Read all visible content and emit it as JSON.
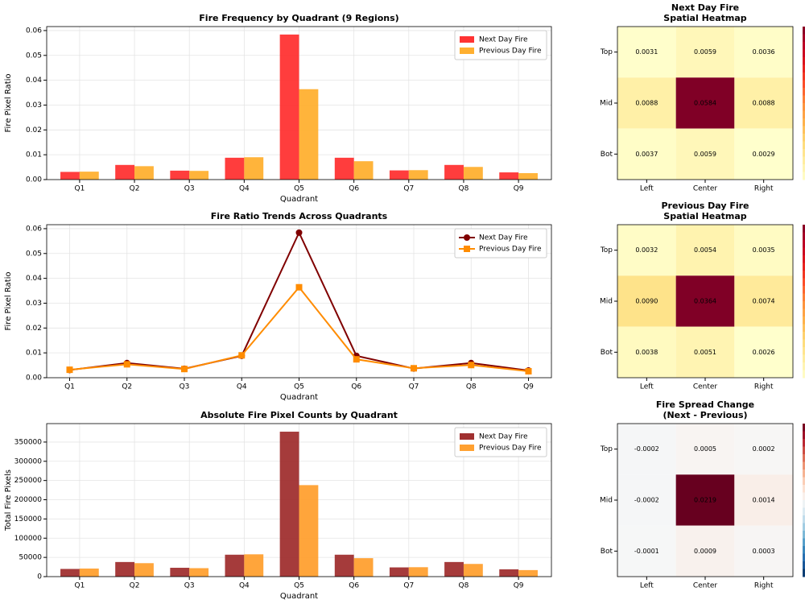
{
  "chart_data": [
    {
      "type": "bar",
      "title": "Fire Frequency by Quadrant (9 Regions)",
      "x_label": "Quadrant",
      "y_label": "Fire Pixel Ratio",
      "categories": [
        "Q1",
        "Q2",
        "Q3",
        "Q4",
        "Q5",
        "Q6",
        "Q7",
        "Q8",
        "Q9"
      ],
      "series": [
        {
          "name": "Next Day Fire",
          "color": "#ff3333",
          "values": [
            0.0031,
            0.0059,
            0.0036,
            0.0088,
            0.0584,
            0.0088,
            0.0037,
            0.0059,
            0.0029
          ]
        },
        {
          "name": "Previous Day Fire",
          "color": "#ffb030",
          "values": [
            0.0032,
            0.0054,
            0.0035,
            0.009,
            0.0364,
            0.0074,
            0.0038,
            0.0051,
            0.0026
          ]
        }
      ],
      "ylim": [
        0,
        0.0616
      ],
      "yticks": [
        {
          "value": 0,
          "label": "0.00"
        },
        0.01,
        0.02,
        0.03,
        0.04,
        0.05,
        0.06
      ],
      "grid": true,
      "legend": "upper right"
    },
    {
      "type": "line",
      "title": "Fire Ratio Trends Across Quadrants",
      "x_label": "Quadrant",
      "y_label": "Fire Pixel Ratio",
      "categories": [
        "Q1",
        "Q2",
        "Q3",
        "Q4",
        "Q5",
        "Q6",
        "Q7",
        "Q8",
        "Q9"
      ],
      "series": [
        {
          "name": "Next Day Fire",
          "color": "#800000",
          "marker": "circle",
          "values": [
            0.0031,
            0.0059,
            0.0036,
            0.0088,
            0.0584,
            0.0088,
            0.0037,
            0.0059,
            0.0029
          ]
        },
        {
          "name": "Previous Day Fire",
          "color": "#ff8c00",
          "marker": "square",
          "values": [
            0.0032,
            0.0054,
            0.0035,
            0.009,
            0.0364,
            0.0074,
            0.0038,
            0.0051,
            0.0026
          ]
        }
      ],
      "ylim": [
        0,
        0.0616
      ],
      "yticks": [
        {
          "value": 0,
          "label": "0.00"
        },
        0.01,
        0.02,
        0.03,
        0.04,
        0.05,
        0.06
      ],
      "grid": true,
      "legend": "upper right"
    },
    {
      "type": "bar",
      "title": "Absolute Fire Pixel Counts by Quadrant",
      "x_label": "Quadrant",
      "y_label": "Total Fire Pixels",
      "categories": [
        "Q1",
        "Q2",
        "Q3",
        "Q4",
        "Q5",
        "Q6",
        "Q7",
        "Q8",
        "Q9"
      ],
      "series": [
        {
          "name": "Next Day Fire",
          "color": "#a03030",
          "values": [
            20000,
            38000,
            23000,
            57000,
            377000,
            57000,
            24000,
            38000,
            19000
          ]
        },
        {
          "name": "Previous Day Fire",
          "color": "#ffa030",
          "values": [
            21000,
            35000,
            22000,
            58000,
            238000,
            48000,
            24500,
            33000,
            17000
          ]
        }
      ],
      "ylim": [
        0,
        398000
      ],
      "yticks": [
        0,
        50000,
        100000,
        150000,
        200000,
        250000,
        300000,
        350000
      ],
      "grid": true,
      "legend": "upper right"
    },
    {
      "type": "heatmap",
      "title": "Next Day Fire",
      "subtitle": "Spatial Heatmap",
      "colormap": "YlOrRd",
      "rows": [
        "Top",
        "Mid",
        "Bot"
      ],
      "columns": [
        "Left",
        "Center",
        "Right"
      ],
      "values": [
        [
          0.0031,
          0.0059,
          0.0036
        ],
        [
          0.0088,
          0.0584,
          0.0088
        ],
        [
          0.0037,
          0.0059,
          0.0029
        ]
      ],
      "value_labels": [
        [
          "0.0031",
          "0.0059",
          "0.0036"
        ],
        [
          "0.0088",
          "0.0584",
          "0.0088"
        ],
        [
          "0.0037",
          "0.0059",
          "0.0029"
        ]
      ]
    },
    {
      "type": "heatmap",
      "title": "Previous Day Fire",
      "subtitle": "Spatial Heatmap",
      "colormap": "YlOrRd",
      "rows": [
        "Top",
        "Mid",
        "Bot"
      ],
      "columns": [
        "Left",
        "Center",
        "Right"
      ],
      "values": [
        [
          0.0032,
          0.0054,
          0.0035
        ],
        [
          0.009,
          0.0364,
          0.0074
        ],
        [
          0.0038,
          0.0051,
          0.0026
        ]
      ],
      "value_labels": [
        [
          "0.0032",
          "0.0054",
          "0.0035"
        ],
        [
          "0.0090",
          "0.0364",
          "0.0074"
        ],
        [
          "0.0038",
          "0.0051",
          "0.0026"
        ]
      ]
    },
    {
      "type": "heatmap",
      "title": "Fire Spread Change",
      "subtitle": "(Next - Previous)",
      "colormap": "RdBu_r",
      "rows": [
        "Top",
        "Mid",
        "Bot"
      ],
      "columns": [
        "Left",
        "Center",
        "Right"
      ],
      "values": [
        [
          -0.0002,
          0.0005,
          0.0002
        ],
        [
          -0.0002,
          0.0219,
          0.0014
        ],
        [
          -0.0001,
          0.0009,
          0.0003
        ]
      ],
      "value_labels": [
        [
          "-0.0002",
          "0.0005",
          "0.0002"
        ],
        [
          "-0.0002",
          "0.0219",
          "0.0014"
        ],
        [
          "-0.0001",
          "0.0009",
          "0.0003"
        ]
      ]
    }
  ]
}
